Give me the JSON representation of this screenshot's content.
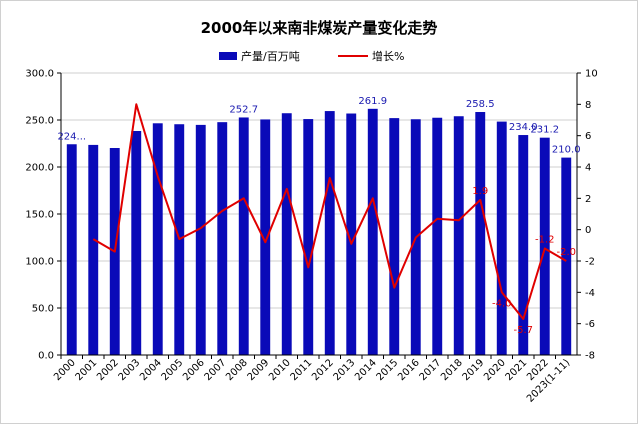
{
  "chart_data": {
    "type": "bar",
    "title": "2000年以来南非煤炭产量变化走势",
    "categories": [
      "2000",
      "2001",
      "2002",
      "2003",
      "2004",
      "2005",
      "2006",
      "2007",
      "2008",
      "2009",
      "2010",
      "2011",
      "2012",
      "2013",
      "2014",
      "2015",
      "2016",
      "2017",
      "2018",
      "2019",
      "2020",
      "2021",
      "2022",
      "2023(1-11)"
    ],
    "series": [
      {
        "name": "产量/百万吨",
        "type": "bar",
        "axis": "left",
        "color": "#0a0ab8",
        "values": [
          224.2,
          223.5,
          220.2,
          238.3,
          246.5,
          245.5,
          244.8,
          247.7,
          252.7,
          250.6,
          257.2,
          251.0,
          259.5,
          256.9,
          261.9,
          252.0,
          250.8,
          252.4,
          254.0,
          258.5,
          248.3,
          234.0,
          231.2,
          210.0
        ]
      },
      {
        "name": "增长%",
        "type": "line",
        "axis": "right",
        "color": "#e00000",
        "values": [
          null,
          -0.6,
          -1.4,
          8.0,
          3.4,
          -0.6,
          0.1,
          1.2,
          2.0,
          -0.8,
          2.6,
          -2.4,
          3.3,
          -0.9,
          2.0,
          -3.7,
          -0.5,
          0.7,
          0.6,
          1.9,
          -4.0,
          -5.7,
          -1.2,
          -2.0
        ]
      }
    ],
    "bar_labels": [
      {
        "index": 0,
        "text": "224..."
      },
      {
        "index": 8,
        "text": "252.7"
      },
      {
        "index": 14,
        "text": "261.9"
      },
      {
        "index": 19,
        "text": "258.5"
      },
      {
        "index": 21,
        "text": "234.0"
      },
      {
        "index": 22,
        "text": "231.2"
      },
      {
        "index": 23,
        "text": "210.0"
      }
    ],
    "line_labels": [
      {
        "index": 19,
        "text": "1.9"
      },
      {
        "index": 20,
        "text": "-4.0"
      },
      {
        "index": 21,
        "text": "-5.7"
      },
      {
        "index": 22,
        "text": "-1.2"
      },
      {
        "index": 23,
        "text": "-2.0"
      }
    ],
    "y_left": {
      "min": 0,
      "max": 300,
      "step": 50,
      "ticks": [
        "0.0",
        "50.0",
        "100.0",
        "150.0",
        "200.0",
        "250.0",
        "300.0"
      ]
    },
    "y_right": {
      "min": -8,
      "max": 10,
      "step": 2,
      "ticks": [
        "-8",
        "-6",
        "-4",
        "-2",
        "0",
        "2",
        "4",
        "6",
        "8",
        "10"
      ]
    },
    "grid": true,
    "legend_position": "top"
  }
}
